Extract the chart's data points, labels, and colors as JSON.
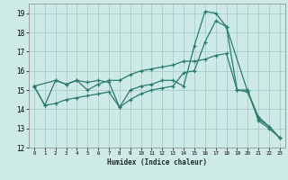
{
  "xlabel": "Humidex (Indice chaleur)",
  "bg_color": "#ceeae6",
  "grid_color": "#aacccc",
  "line_color": "#2a7a70",
  "xlim": [
    -0.5,
    23.5
  ],
  "ylim": [
    12,
    19.5
  ],
  "yticks": [
    12,
    13,
    14,
    15,
    16,
    17,
    18,
    19
  ],
  "xticks": [
    0,
    1,
    2,
    3,
    4,
    5,
    6,
    7,
    8,
    9,
    10,
    11,
    12,
    13,
    14,
    15,
    16,
    17,
    18,
    19,
    20,
    21,
    22,
    23
  ],
  "line1_x": [
    0,
    1,
    2,
    3,
    4,
    5,
    6,
    7,
    8,
    9,
    10,
    11,
    12,
    13,
    14,
    15,
    16,
    17,
    18,
    20,
    21,
    22,
    23
  ],
  "line1_y": [
    15.2,
    14.2,
    15.5,
    15.3,
    15.5,
    15.4,
    15.5,
    15.4,
    14.1,
    15.0,
    15.2,
    15.3,
    15.5,
    15.5,
    15.2,
    17.3,
    19.1,
    19.0,
    18.3,
    14.9,
    13.6,
    13.1,
    12.5
  ],
  "line2_x": [
    0,
    2,
    3,
    4,
    5,
    6,
    7,
    8,
    9,
    10,
    11,
    12,
    13,
    14,
    15,
    16,
    17,
    18,
    19,
    20,
    21,
    22,
    23
  ],
  "line2_y": [
    15.2,
    15.5,
    15.3,
    15.5,
    15.0,
    15.3,
    15.5,
    15.5,
    15.8,
    16.0,
    16.1,
    16.2,
    16.3,
    16.5,
    16.5,
    16.6,
    16.8,
    16.9,
    15.0,
    14.9,
    13.5,
    13.1,
    12.5
  ],
  "line3_x": [
    0,
    1,
    2,
    3,
    4,
    5,
    6,
    7,
    8,
    9,
    10,
    11,
    12,
    13,
    14,
    15,
    16,
    17,
    18,
    19,
    20,
    21,
    22,
    23
  ],
  "line3_y": [
    15.2,
    14.2,
    14.3,
    14.5,
    14.6,
    14.7,
    14.8,
    14.9,
    14.1,
    14.5,
    14.8,
    15.0,
    15.1,
    15.2,
    15.9,
    16.0,
    17.5,
    18.6,
    18.3,
    15.0,
    15.0,
    13.4,
    13.0,
    12.5
  ]
}
